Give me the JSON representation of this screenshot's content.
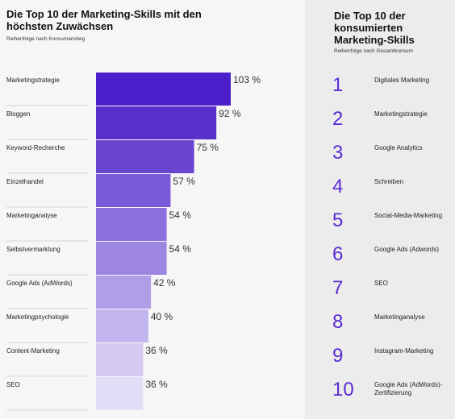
{
  "chart_data": {
    "type": "bar",
    "orientation": "horizontal",
    "title": "Die Top 10 der Marketing-Skills mit den höchsten Zuwächsen",
    "subtitle": "Reihenfolge nach Konsumanstieg",
    "categories": [
      "Marketingstrategie",
      "Bloggen",
      "Keyword-Recherche",
      "Einzelhandel",
      "Marketinganalyse",
      "Selbstvermarktung",
      "Google Ads (AdWords)",
      "Marketingpsychologie",
      "Content-Marketing",
      "SEO"
    ],
    "values": [
      103,
      92,
      75,
      57,
      54,
      54,
      42,
      40,
      36,
      36
    ],
    "value_labels": [
      "103 %",
      "92 %",
      "75 %",
      "57 %",
      "54 %",
      "54 %",
      "42 %",
      "40 %",
      "36 %",
      "36 %"
    ],
    "colors": [
      "#4a1ec8",
      "#5a30cc",
      "#6a45d2",
      "#7b5ad8",
      "#8c70de",
      "#9c86e2",
      "#b09ee8",
      "#c2b4ee",
      "#d3c9f2",
      "#e4ddf7"
    ]
  },
  "ranking": {
    "title": "Die Top 10 der konsumierten Marketing-Skills",
    "subtitle": "Reihenfolge nach Gesamtkonsum",
    "items": [
      {
        "rank": "1",
        "label": "Digitales Marketing"
      },
      {
        "rank": "2",
        "label": "Marketingstrategie"
      },
      {
        "rank": "3",
        "label": "Google Analytics"
      },
      {
        "rank": "4",
        "label": "Schreiben"
      },
      {
        "rank": "5",
        "label": "Social-Media-Marketing"
      },
      {
        "rank": "6",
        "label": "Google Ads (Adwords)"
      },
      {
        "rank": "7",
        "label": "SEO"
      },
      {
        "rank": "8",
        "label": "Marketinganalyse"
      },
      {
        "rank": "9",
        "label": "Instagram-Marketing"
      },
      {
        "rank": "10",
        "label": "Google Ads (AdWords)-Zertifizierung"
      }
    ]
  }
}
